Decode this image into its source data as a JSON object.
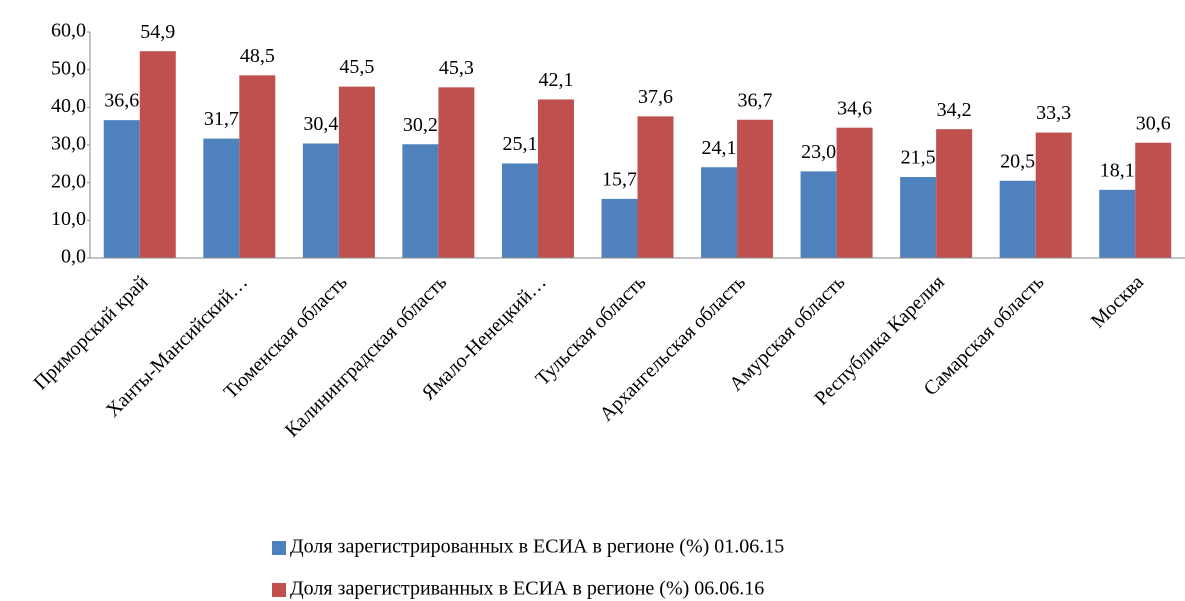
{
  "chart_data": {
    "type": "bar",
    "categories": [
      "Приморский край",
      "Ханты-Мансийский…",
      "Тюменская область",
      "Калининградская область",
      "Ямало-Ненецкий…",
      "Тульская область",
      "Архангельская область",
      "Амурская область",
      "Республика Карелия",
      "Самарская область",
      "Москва"
    ],
    "series": [
      {
        "name": "Доля зарегистрированных в  ЕСИА в регионе (%) 01.06.15",
        "color": "#4f81bd",
        "values": [
          36.6,
          31.7,
          30.4,
          30.2,
          25.1,
          15.7,
          24.1,
          23.0,
          21.5,
          20.5,
          18.1
        ],
        "value_labels": [
          "36,6",
          "31,7",
          "30,4",
          "30,2",
          "25,1",
          "15,7",
          "24,1",
          "23,0",
          "21,5",
          "20,5",
          "18,1"
        ]
      },
      {
        "name": "Доля зарегистриванных в ЕСИА в регионе (%) 06.06.16",
        "color": "#c0504d",
        "values": [
          54.9,
          48.5,
          45.5,
          45.3,
          42.1,
          37.6,
          36.7,
          34.6,
          34.2,
          33.3,
          30.6
        ],
        "value_labels": [
          "54,9",
          "48,5",
          "45,5",
          "45,3",
          "42,1",
          "37,6",
          "36,7",
          "34,6",
          "34,2",
          "33,3",
          "30,6"
        ]
      }
    ],
    "ylim": [
      0,
      60
    ],
    "yticks": [
      {
        "value": 0,
        "label": "0,0"
      },
      {
        "value": 10,
        "label": "10,0"
      },
      {
        "value": 20,
        "label": "20,0"
      },
      {
        "value": 30,
        "label": "30,0"
      },
      {
        "value": 40,
        "label": "40,0"
      },
      {
        "value": 50,
        "label": "50,0"
      },
      {
        "value": 60,
        "label": "60,0"
      }
    ],
    "legend": "bottom"
  }
}
